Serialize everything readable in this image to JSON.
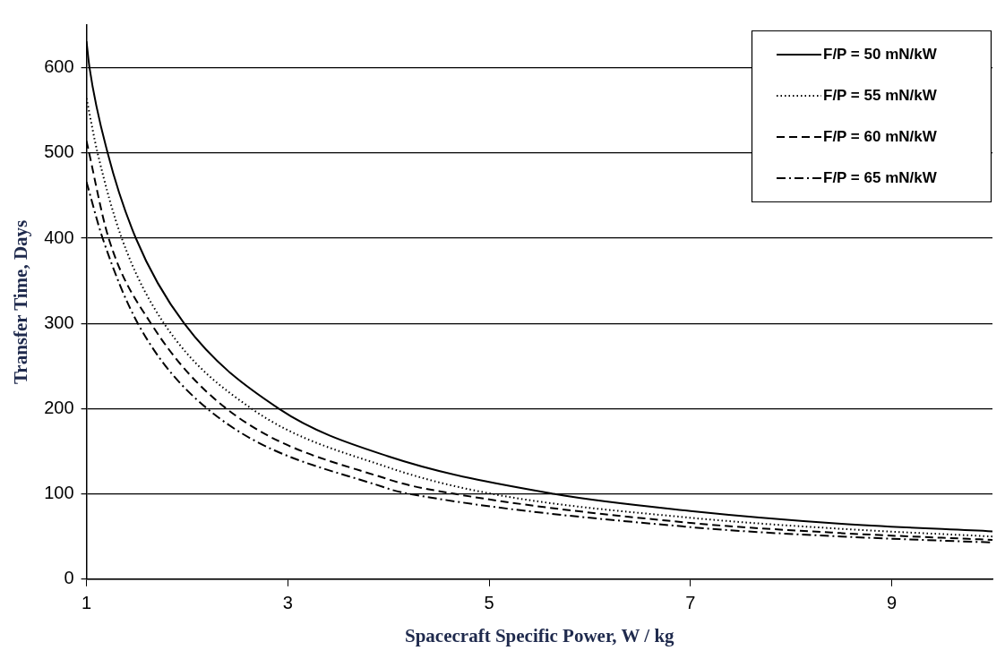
{
  "chart_data": {
    "type": "line",
    "xlabel": "Spacecraft Specific Power, W / kg",
    "ylabel": "Transfer Time, Days",
    "xlim": [
      1,
      10
    ],
    "xticks": [
      1,
      3,
      5,
      7,
      9
    ],
    "ylim": [
      0,
      650
    ],
    "yticks": [
      0,
      100,
      200,
      300,
      400,
      500,
      600
    ],
    "grid": "y",
    "legend": "top right",
    "marker": "none",
    "series": [
      {
        "name": "F/P = 50 mN/kW",
        "color": "#000000",
        "line_style": "solid",
        "x": [
          1,
          1.03,
          1.21,
          1.49,
          1.97,
          2.91,
          4,
          5.64,
          7,
          8.5,
          10
        ],
        "values": [
          631,
          600,
          500,
          400,
          300,
          200,
          144,
          100,
          80,
          65,
          56
        ]
      },
      {
        "name": "F/P = 55 mN/kW",
        "color": "#000000",
        "line_style": "dotted",
        "x": [
          1,
          1.11,
          1.35,
          1.77,
          2.64,
          4,
          5.03,
          7,
          8.5,
          10
        ],
        "values": [
          564,
          500,
          400,
          300,
          200,
          131,
          100,
          72,
          59,
          50
        ]
      },
      {
        "name": "F/P = 60 mN/kW",
        "color": "#000000",
        "line_style": "dashed",
        "x": [
          1,
          1.22,
          1.64,
          2.39,
          4,
          4.66,
          7,
          8.5,
          10
        ],
        "values": [
          514,
          400,
          300,
          200,
          117,
          100,
          66,
          54,
          46
        ]
      },
      {
        "name": "F/P = 65 mN/kW",
        "color": "#000000",
        "line_style": "dashdot",
        "x": [
          1,
          1.16,
          1.51,
          2.2,
          4,
          4.21,
          7,
          8.5,
          10
        ],
        "values": [
          466,
          400,
          300,
          200,
          106,
          100,
          61,
          50,
          43
        ]
      }
    ]
  }
}
